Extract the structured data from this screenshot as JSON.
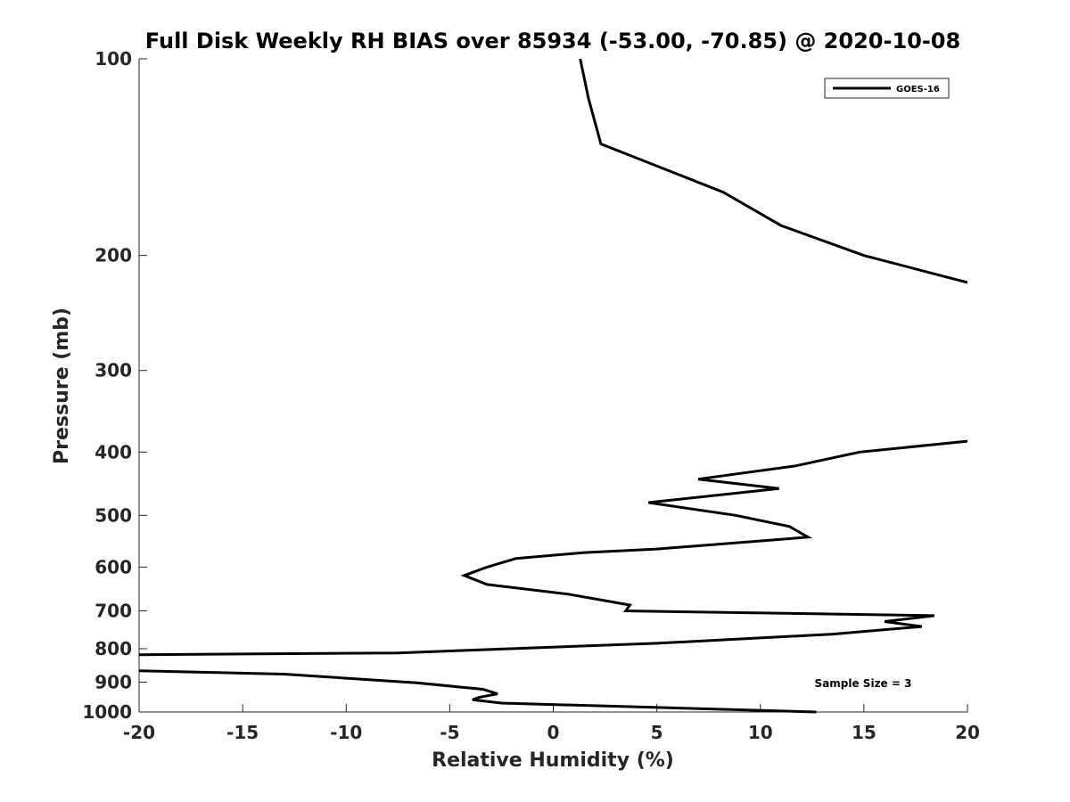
{
  "chart_data": {
    "type": "line",
    "title": "Full Disk Weekly RH BIAS over 85934 (-53.00, -70.85) @ 2020-10-08",
    "xlabel": "Relative Humidity (%)",
    "ylabel": "Pressure (mb)",
    "xlim": [
      -20,
      20
    ],
    "ylim": [
      100,
      1000
    ],
    "y_scale": "log",
    "y_reversed": true,
    "grid": false,
    "xticks": [
      -20,
      -15,
      -10,
      -5,
      0,
      5,
      10,
      15,
      20
    ],
    "xtick_labels": [
      "-20",
      "-15",
      "-10",
      "-5",
      "0",
      "5",
      "10",
      "15",
      "20"
    ],
    "yticks": [
      100,
      200,
      300,
      400,
      500,
      600,
      700,
      800,
      900,
      1000
    ],
    "ytick_labels": [
      "100",
      "200",
      "300",
      "400",
      "500",
      "600",
      "700",
      "800",
      "900",
      "1000"
    ],
    "legend": {
      "position": "top-right",
      "entries": [
        "GOES-16"
      ]
    },
    "annotation": "Sample Size = 3",
    "series": [
      {
        "name": "GOES-16",
        "color": "#000000",
        "segments": [
          [
            [
              1.3,
              100
            ],
            [
              1.7,
              115
            ],
            [
              2.3,
              135
            ],
            [
              8.2,
              160
            ],
            [
              11.0,
              180
            ],
            [
              15.0,
              200
            ],
            [
              20.0,
              220
            ]
          ],
          [
            [
              20.0,
              385
            ],
            [
              14.8,
              400
            ],
            [
              11.7,
              420
            ],
            [
              7.0,
              440
            ],
            [
              10.9,
              455
            ],
            [
              4.6,
              478
            ],
            [
              8.8,
              500
            ],
            [
              11.4,
              520
            ],
            [
              12.3,
              540
            ],
            [
              5.0,
              563
            ],
            [
              1.5,
              570
            ],
            [
              -1.8,
              582
            ],
            [
              -3.2,
              600
            ],
            [
              -4.3,
              618
            ],
            [
              -3.2,
              638
            ],
            [
              0.7,
              660
            ],
            [
              3.7,
              686
            ],
            [
              3.5,
              700
            ],
            [
              18.4,
              712
            ],
            [
              16.0,
              727
            ],
            [
              17.8,
              740
            ],
            [
              13.5,
              760
            ],
            [
              5.0,
              785
            ],
            [
              -7.5,
              812
            ],
            [
              -20.0,
              817
            ]
          ],
          [
            [
              -20.0,
              865
            ],
            [
              -13.0,
              875
            ],
            [
              -6.6,
              902
            ],
            [
              -3.4,
              923
            ],
            [
              -2.7,
              938
            ],
            [
              -3.6,
              950
            ],
            [
              -3.9,
              958
            ],
            [
              -2.5,
              969
            ],
            [
              12.7,
              1000
            ]
          ]
        ]
      }
    ]
  }
}
